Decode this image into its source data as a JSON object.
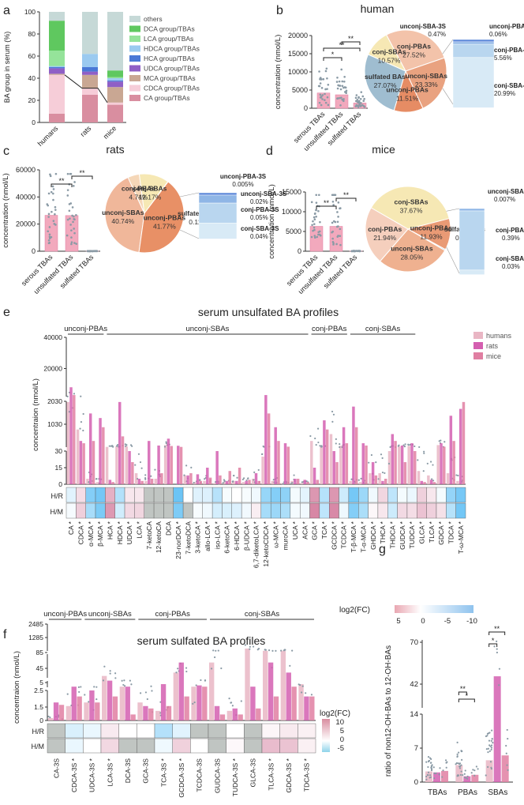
{
  "chart_data": [
    {
      "id": "a",
      "panel_label": "a",
      "type": "bar",
      "stacked": true,
      "categories": [
        "humans",
        "rats",
        "mice"
      ],
      "ylabel": "BA group in serum (%)",
      "ylim": [
        0,
        100
      ],
      "yticks": [
        "0",
        "20",
        "40",
        "60",
        "80",
        "100"
      ],
      "series": [
        {
          "name": "CA group/TBAs",
          "color": "#d98ea0",
          "values": [
            8,
            25,
            16
          ]
        },
        {
          "name": "CDCA group/TBAs",
          "color": "#f6cdd8",
          "values": [
            35,
            6,
            2
          ]
        },
        {
          "name": "MCA group/TBAs",
          "color": "#c9a793",
          "values": [
            1,
            12,
            14
          ]
        },
        {
          "name": "UDCA group/TBAs",
          "color": "#8f5fc6",
          "values": [
            5,
            3,
            5
          ]
        },
        {
          "name": "HCA group/TBAs",
          "color": "#4a78d6",
          "values": [
            1,
            4,
            1
          ]
        },
        {
          "name": "HDCA group/TBAs",
          "color": "#9bcaf0",
          "values": [
            1,
            12,
            2
          ]
        },
        {
          "name": "LCA group/TBAs",
          "color": "#95e39a",
          "values": [
            14,
            0,
            1
          ]
        },
        {
          "name": "DCA group/TBAs",
          "color": "#5fc85f",
          "values": [
            27,
            0,
            6
          ]
        },
        {
          "name": "others",
          "color": "#c6d9d7",
          "values": [
            8,
            38,
            53
          ]
        }
      ]
    },
    {
      "id": "b",
      "panel_label": "b",
      "title": "human",
      "type": "bar",
      "categories": [
        "serous TBAs",
        "unsulfated TBAs",
        "sulfated TBAs"
      ],
      "values": [
        4200,
        3700,
        1450
      ],
      "ylabel": "concentration (nmol/L)",
      "ylim": [
        0,
        20000
      ],
      "yticks": [
        "0",
        "5000",
        "10000",
        "15000",
        "20000"
      ],
      "significance": [
        "**",
        "*",
        "**"
      ],
      "pie": [
        {
          "label": "conj-PBAs",
          "value": 27.52,
          "text": "27.52%",
          "color": "#f3c3aa"
        },
        {
          "label": "unconj-SBAs",
          "value": 23.33,
          "text": "23.33%",
          "color": "#e9a280"
        },
        {
          "label": "unconj-PBAs",
          "value": 11.51,
          "text": "11.51%",
          "color": "#e68c64"
        },
        {
          "label": "sulfated BAs",
          "value": 27.07,
          "text": "27.07%",
          "color": "#9fbdd0"
        },
        {
          "label": "conj-SBAs",
          "value": 10.57,
          "text": "10.57%",
          "color": "#f6e8b4"
        }
      ],
      "sulfated_breakdown": [
        {
          "label": "unconj-SBA-3S",
          "text": "0.47%",
          "value": 0.47
        },
        {
          "label": "unconj-PBA-3S",
          "text": "0.06%",
          "value": 0.06
        },
        {
          "label": "conj-PBA-3S",
          "text": "5.56%",
          "value": 5.56
        },
        {
          "label": "conj-SBA-3S",
          "text": "20.99%",
          "value": 20.99
        }
      ]
    },
    {
      "id": "c",
      "panel_label": "c",
      "title": "rats",
      "type": "bar",
      "categories": [
        "serous TBAs",
        "unsulfated TBAs",
        "sulfated TBAs"
      ],
      "values": [
        26500,
        26300,
        80
      ],
      "ylabel": "concentration (nmol/L)",
      "ylim": [
        0,
        60000
      ],
      "yticks": [
        "0",
        "20000",
        "40000",
        "60000"
      ],
      "significance": [
        "**",
        "**"
      ],
      "pie": [
        {
          "label": "unconj-SBAs",
          "value": 40.74,
          "text": "40.74%",
          "color": "#f0b79a"
        },
        {
          "label": "conj-PBAs",
          "value": 4.74,
          "text": "4.74%",
          "color": "#f5d7b8"
        },
        {
          "label": "conj-SBAs",
          "value": 12.17,
          "text": "12.17%",
          "color": "#f6e8b4"
        },
        {
          "label": "sulfated BAs",
          "value": 0.11,
          "text": "0.11%",
          "color": "#9fbdd0"
        },
        {
          "label": "unconj-PBAs",
          "value": 41.77,
          "text": "41.77%",
          "color": "#e89066"
        }
      ],
      "sulfated_breakdown": [
        {
          "label": "unconj-PBA-3S",
          "text": "0.005%",
          "value": 0.005
        },
        {
          "label": "unconj-SBA-3S",
          "text": "0.02%",
          "value": 0.02
        },
        {
          "label": "conj-PBA-3S",
          "text": "0.05%",
          "value": 0.05
        },
        {
          "label": "conj-SBA-3S",
          "text": "0.04%",
          "value": 0.04
        }
      ]
    },
    {
      "id": "d",
      "panel_label": "d",
      "title": "mice",
      "type": "bar",
      "categories": [
        "serous TBAs",
        "unsulfated TBAs",
        "sulfated TBAs"
      ],
      "values": [
        6300,
        6300,
        40
      ],
      "ylabel": "concentration (nmol/L)",
      "ylim": [
        0,
        15000
      ],
      "yticks": [
        "0",
        "5000",
        "10000",
        "15000"
      ],
      "significance": [
        "**",
        "**"
      ],
      "pie": [
        {
          "label": "conj-SBAs",
          "value": 37.67,
          "text": "37.67%",
          "color": "#f6e8b4"
        },
        {
          "label": "unconj-PBAs",
          "value": 11.93,
          "text": "11.93%",
          "color": "#e99a75"
        },
        {
          "label": "sulfated BAs",
          "value": 0.42,
          "text": "0.42%",
          "color": "#9fbdd0"
        },
        {
          "label": "unconj-SBAs",
          "value": 28.05,
          "text": "28.05%",
          "color": "#efb190"
        },
        {
          "label": "conj-PBAs",
          "value": 21.94,
          "text": "21.94%",
          "color": "#f5cfbd"
        }
      ],
      "sulfated_breakdown": [
        {
          "label": "unconj-SBA-3S",
          "text": "0.007%",
          "value": 0.007
        },
        {
          "label": "conj-PBA-3S",
          "text": "0.39%",
          "value": 0.39
        },
        {
          "label": "conj-SBA-3S",
          "text": "0.03%",
          "value": 0.03
        }
      ]
    },
    {
      "id": "e",
      "panel_label": "e",
      "title": "serum unsulfated BA profiles",
      "type": "bar",
      "ylabel": "concentraion (nmol/L)",
      "yticks_broken": [
        "0",
        "15",
        "30",
        "1030",
        "2030",
        "20000",
        "40000"
      ],
      "legend": [
        "humans",
        "rats",
        "mice"
      ],
      "colors": {
        "humans": "#e9b6c4",
        "rats": "#d45fb0",
        "mice": "#e07fa2"
      },
      "groups": [
        {
          "label": "unconj-PBAs",
          "start": 0,
          "end": 3
        },
        {
          "label": "unconj-SBAs",
          "start": 4,
          "end": 24
        },
        {
          "label": "conj-PBAs",
          "start": 25,
          "end": 28
        },
        {
          "label": "conj-SBAs",
          "start": 29,
          "end": 35
        }
      ],
      "categories": [
        "CA",
        "CDCA",
        "α-MCA",
        "β-MCA",
        "HCA",
        "HDCA",
        "UDCA",
        "LCA",
        "7-ketoCA",
        "12-ketoCA",
        "DCA",
        "23-norDCA",
        "7-ketoDCA",
        "3-ketoCA",
        "allo-LCA",
        "iso-LCA",
        "6-ketoCA",
        "6-HDCA",
        "β-UDCA",
        "6,7-diketoLCA",
        "12-ketoCDCA",
        "ω-MCA",
        "muroCA",
        "UCA",
        "ACA",
        "GCA",
        "TCA",
        "GCDCA",
        "TCDCA",
        "T-β-MCA",
        "T-α-MCA",
        "GHDCA",
        "THCA",
        "THDCA",
        "GUDCA",
        "TUDCA",
        "GLCA",
        "TLCA",
        "GDCA",
        "TDCA",
        "T-ω-MCA"
      ],
      "starred": [
        true,
        true,
        true,
        true,
        true,
        true,
        true,
        true,
        false,
        false,
        false,
        true,
        false,
        true,
        true,
        true,
        true,
        true,
        true,
        true,
        true,
        true,
        true,
        true,
        true,
        true,
        true,
        true,
        true,
        true,
        true,
        true,
        true,
        true,
        true,
        true,
        true,
        true,
        true,
        true,
        true
      ],
      "series": [
        {
          "name": "humans",
          "values": [
            2000,
            800,
            5,
            2,
            40,
            60,
            60,
            10,
            3,
            5,
            120,
            0,
            8,
            2,
            3,
            1,
            2,
            3,
            2,
            5,
            25,
            3,
            1,
            3,
            1,
            300,
            40,
            600,
            90,
            3,
            2,
            10,
            10,
            30,
            60,
            80,
            12,
            8,
            120,
            10,
            3
          ]
        },
        {
          "name": "rats",
          "values": [
            8000,
            300,
            1500,
            1300,
            4,
            2000,
            30,
            5,
            300,
            100,
            400,
            90,
            8,
            9,
            15,
            30,
            3,
            3,
            3,
            10,
            3000,
            900,
            200,
            5,
            4,
            15,
            1200,
            30,
            900,
            1800,
            200,
            20,
            3,
            600,
            100,
            200,
            3,
            4,
            200,
            1400,
            1700
          ]
        },
        {
          "name": "mice",
          "values": [
            3000,
            200,
            300,
            900,
            2,
            500,
            20,
            3,
            5,
            10,
            80,
            40,
            10,
            3,
            6,
            8,
            12,
            15,
            4,
            3,
            1500,
            300,
            50,
            5,
            2,
            4,
            800,
            20,
            200,
            900,
            100,
            8,
            5,
            300,
            20,
            30,
            2,
            2,
            50,
            300,
            2000
          ]
        }
      ],
      "heatmap_rows": [
        "H/R",
        "H/M"
      ],
      "colorbar": {
        "label": "log2(FC)",
        "ticks": [
          "5",
          "0",
          "-5",
          "-10"
        ]
      }
    },
    {
      "id": "f",
      "panel_label": "f",
      "title": "serum sulfated BA profiles",
      "type": "bar",
      "ylabel": "concentraion (nmol/L)",
      "yticks_broken": [
        "0",
        "1.5",
        "2.5",
        "5",
        "45",
        "85",
        "1285",
        "2485"
      ],
      "groups": [
        {
          "label": "unconj-PBAs",
          "start": 0,
          "end": 1
        },
        {
          "label": "unconj-SBAs",
          "start": 2,
          "end": 4
        },
        {
          "label": "conj-PBAs",
          "start": 5,
          "end": 8
        },
        {
          "label": "conj-SBAs",
          "start": 9,
          "end": 14
        }
      ],
      "categories": [
        "CA-3S",
        "CDCA-3S",
        "UDCA-3S",
        "LCA-3S",
        "DCA-3S",
        "GCA-3S",
        "TCA-3S",
        "GCDCA-3S",
        "TCDCA-3S",
        "GUDCA-3S",
        "TUDCA-3S",
        "GLCA-3S",
        "TLCA-3S",
        "GDCA-3S",
        "TDCA-3S"
      ],
      "starred": [
        false,
        true,
        true,
        true,
        false,
        false,
        true,
        true,
        false,
        false,
        true,
        false,
        true,
        true,
        true
      ],
      "series": [
        {
          "name": "humans",
          "values": [
            0.2,
            1.2,
            1.5,
            20,
            3,
            1.5,
            0.8,
            30,
            3,
            60,
            0.8,
            300,
            100,
            100,
            5
          ]
        },
        {
          "name": "rats",
          "values": [
            1.5,
            3,
            2.5,
            6,
            3,
            1.2,
            5,
            60,
            4,
            1.2,
            1,
            3,
            60,
            30,
            2
          ]
        },
        {
          "name": "mice",
          "values": [
            1.3,
            2,
            1.5,
            2,
            0.5,
            1,
            1.2,
            2,
            3,
            0.5,
            0.5,
            1,
            2,
            3,
            2
          ]
        }
      ],
      "heatmap_rows": [
        "H/R",
        "H/M"
      ],
      "colorbar": {
        "label": "log2(FC)",
        "ticks": [
          "10",
          "5",
          "0",
          "-5"
        ]
      }
    },
    {
      "id": "g",
      "panel_label": "g",
      "type": "bar",
      "ylabel": "ratio of non12-OH-BAs to 12-OH-BAs",
      "yticks_broken": [
        "0",
        "7",
        "14",
        "42",
        "70"
      ],
      "categories": [
        "TBAs",
        "PBAs",
        "SBAs"
      ],
      "series": [
        {
          "name": "humans",
          "values": [
            2.2,
            3.5,
            4.5
          ]
        },
        {
          "name": "rats",
          "values": [
            2.0,
            1.2,
            40
          ]
        },
        {
          "name": "mice",
          "values": [
            2.3,
            1.5,
            5.5
          ]
        }
      ],
      "significance": [
        "**",
        "*",
        "**",
        "*"
      ]
    }
  ]
}
